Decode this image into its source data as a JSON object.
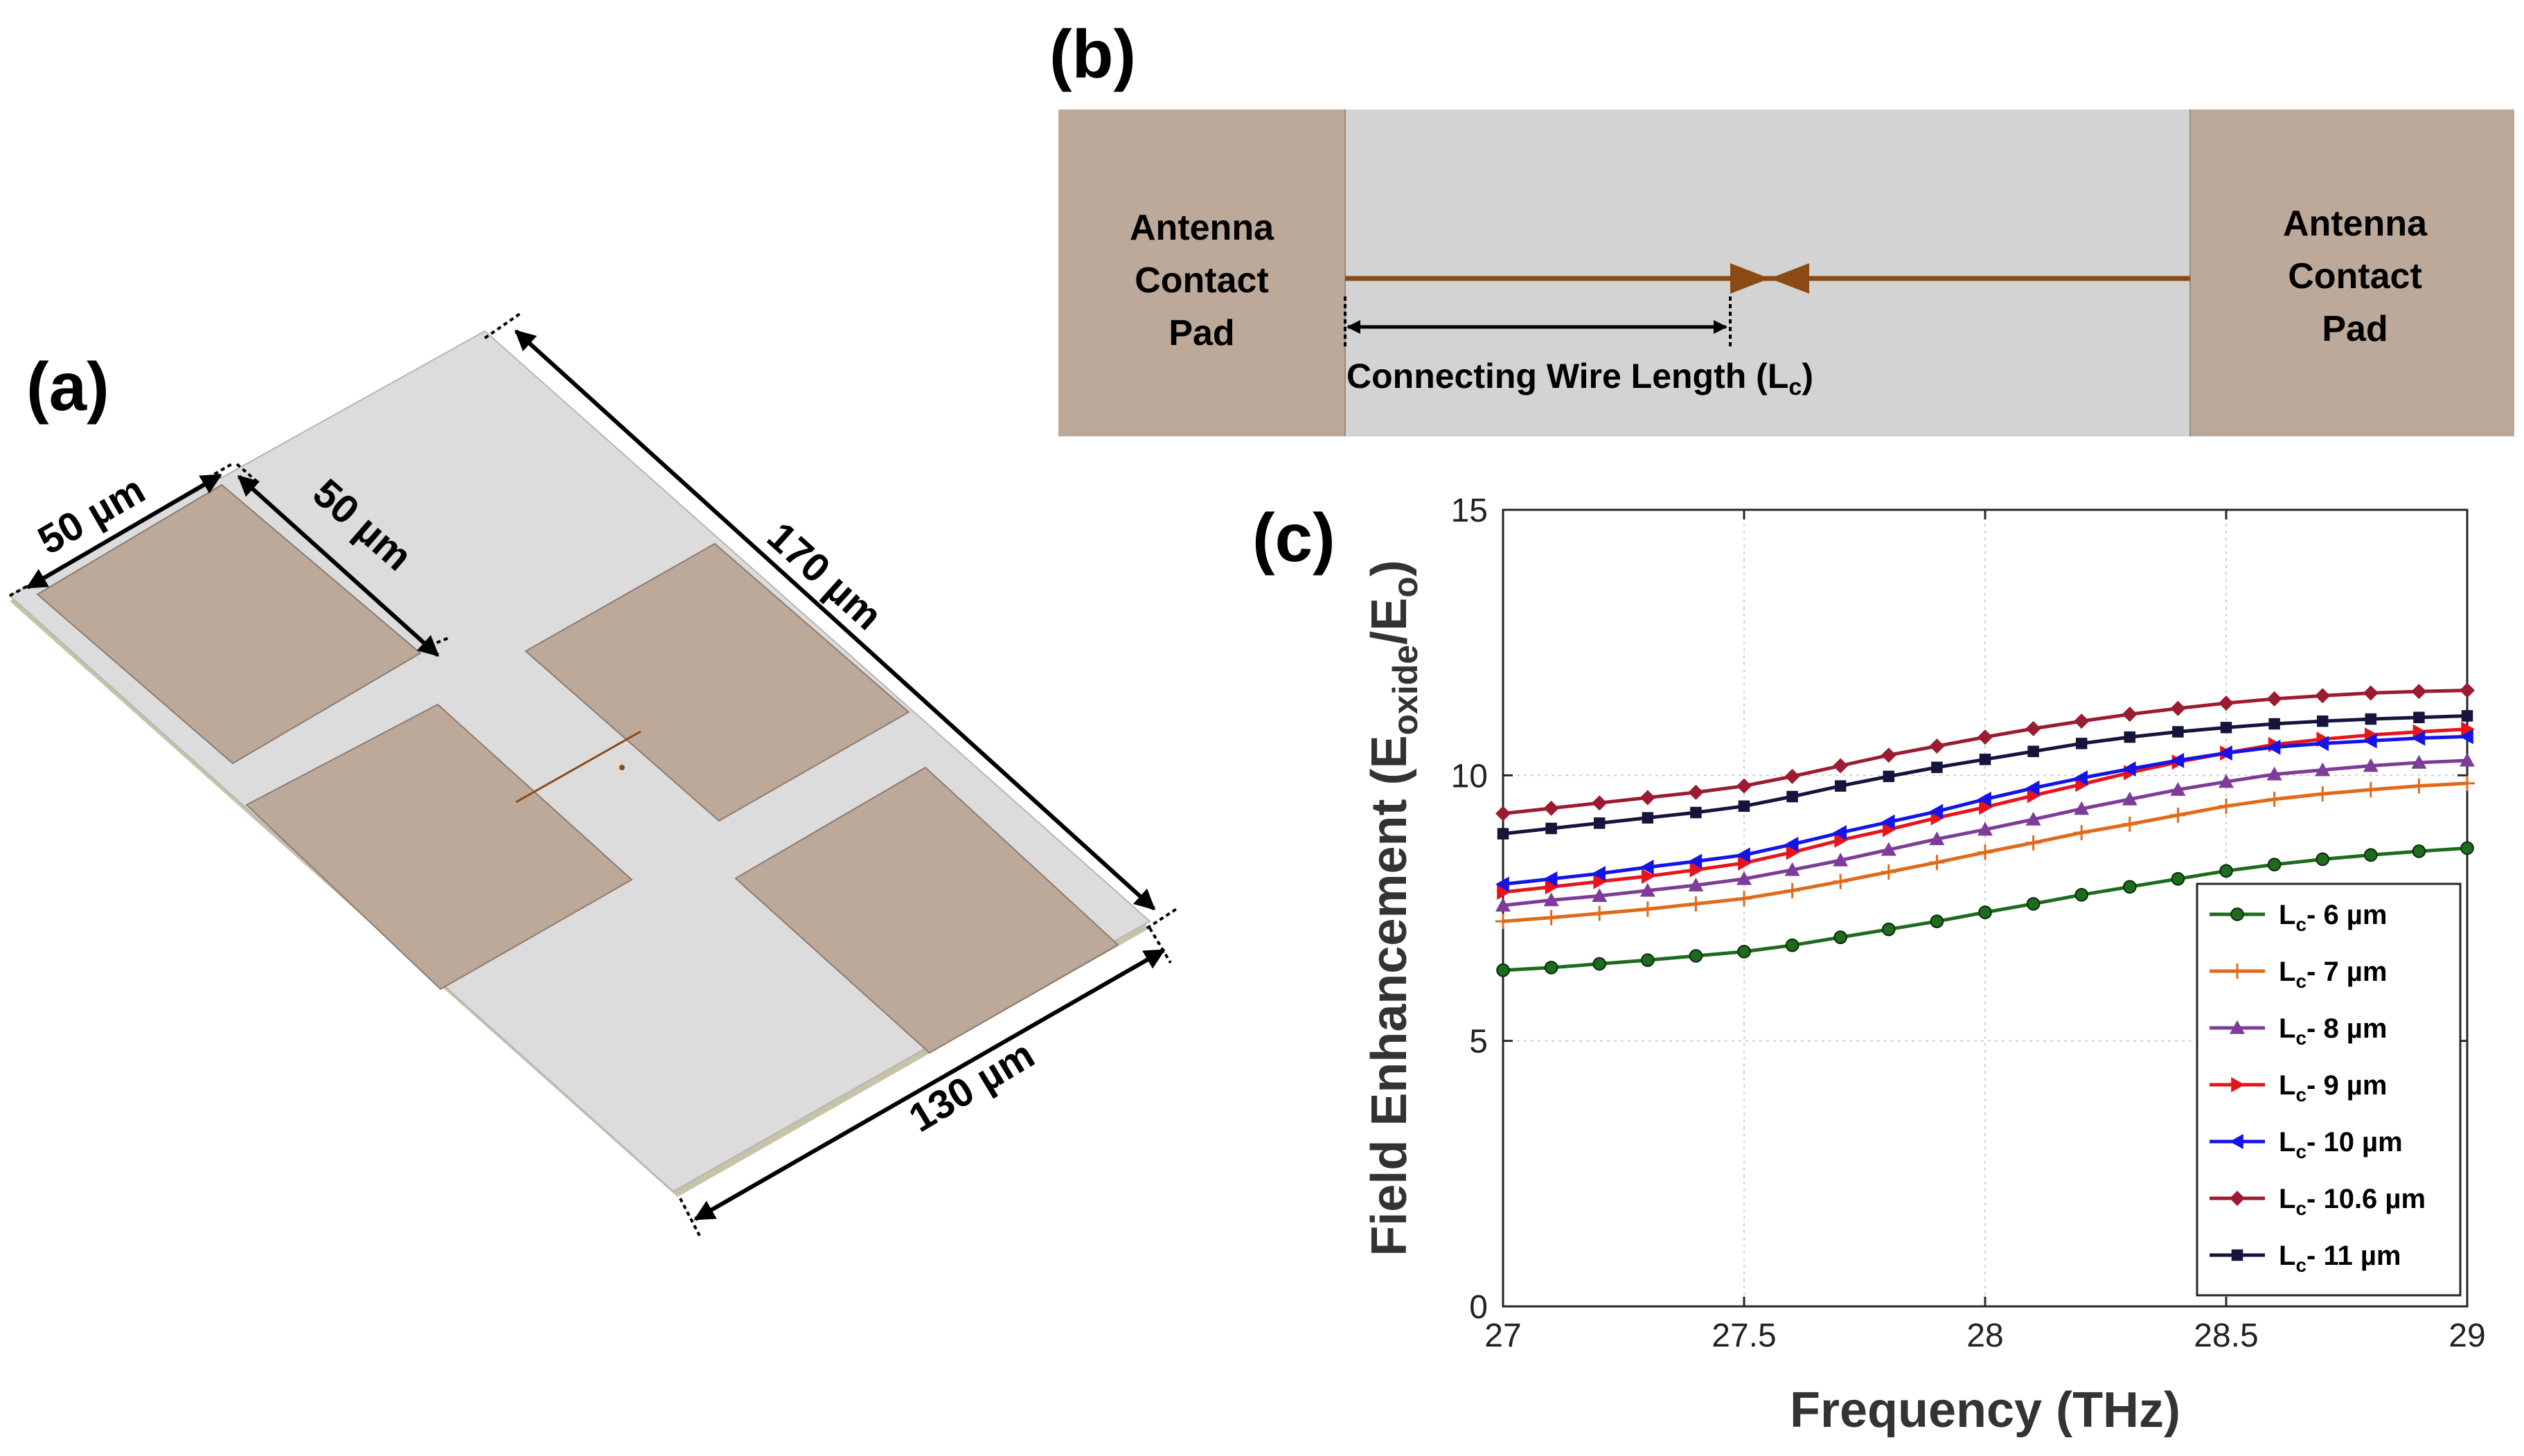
{
  "panels": {
    "a": {
      "label": "(a)",
      "dim_pad_width": "50 µm",
      "dim_pad_height": "50 µm",
      "dim_length": "170 µm",
      "dim_width": "130 µm"
    },
    "b": {
      "label": "(b)",
      "left_pad": [
        "Antenna",
        "Contact",
        "Pad"
      ],
      "right_pad": [
        "Antenna",
        "Contact",
        "Pad"
      ],
      "wire_label": "Connecting Wire Length (L",
      "wire_label_sub": "c",
      "wire_label_end": ")"
    },
    "c": {
      "label": "(c)"
    }
  },
  "colors": {
    "pad": "#bca99a",
    "substrate": "#d3d3d3",
    "wire": "#8b4a14"
  },
  "chart_data": {
    "type": "line",
    "xlabel": "Frequency (THz)",
    "ylabel_main": "Field Enhancement (E",
    "ylabel_sub1": "oxide",
    "ylabel_mid": "/E",
    "ylabel_sub2": "o",
    "ylabel_end": ")",
    "xlim": [
      27,
      29
    ],
    "ylim": [
      0,
      15
    ],
    "xticks": [
      27,
      27.5,
      28,
      28.5,
      29
    ],
    "xtick_labels": [
      "27",
      "27.5",
      "28",
      "28.5",
      "29"
    ],
    "yticks": [
      0,
      5,
      10,
      15
    ],
    "ytick_labels": [
      "0",
      "5",
      "10",
      "15"
    ],
    "grid": true,
    "legend_position": "lower-right",
    "x": [
      27.0,
      27.1,
      27.2,
      27.3,
      27.4,
      27.5,
      27.6,
      27.7,
      27.8,
      27.9,
      28.0,
      28.1,
      28.2,
      28.3,
      28.4,
      28.5,
      28.6,
      28.7,
      28.8,
      28.9,
      29.0
    ],
    "series": [
      {
        "name_pre": "L",
        "name_sub": "c",
        "name_post": "- 6 µm",
        "color": "#1e6b1e",
        "marker": "circle",
        "values": [
          6.33,
          6.38,
          6.45,
          6.52,
          6.6,
          6.68,
          6.8,
          6.95,
          7.1,
          7.25,
          7.42,
          7.58,
          7.75,
          7.9,
          8.05,
          8.2,
          8.32,
          8.42,
          8.5,
          8.57,
          8.63
        ]
      },
      {
        "name_pre": "L",
        "name_sub": "c",
        "name_post": "- 7 µm",
        "color": "#e06a1a",
        "marker": "plus",
        "values": [
          7.25,
          7.32,
          7.4,
          7.48,
          7.58,
          7.68,
          7.83,
          8.0,
          8.18,
          8.36,
          8.55,
          8.73,
          8.92,
          9.08,
          9.25,
          9.42,
          9.55,
          9.65,
          9.73,
          9.8,
          9.85
        ]
      },
      {
        "name_pre": "L",
        "name_sub": "c",
        "name_post": "- 8 µm",
        "color": "#7d3c98",
        "marker": "triangle-up",
        "values": [
          7.55,
          7.65,
          7.73,
          7.83,
          7.93,
          8.05,
          8.22,
          8.4,
          8.6,
          8.8,
          8.98,
          9.17,
          9.37,
          9.55,
          9.73,
          9.88,
          10.02,
          10.1,
          10.18,
          10.24,
          10.28
        ]
      },
      {
        "name_pre": "L",
        "name_sub": "c",
        "name_post": "- 9 µm",
        "color": "#e8141c",
        "marker": "triangle-right",
        "values": [
          7.8,
          7.9,
          8.0,
          8.1,
          8.22,
          8.35,
          8.55,
          8.78,
          8.98,
          9.2,
          9.4,
          9.62,
          9.83,
          10.05,
          10.25,
          10.42,
          10.58,
          10.68,
          10.76,
          10.82,
          10.87
        ]
      },
      {
        "name_pre": "L",
        "name_sub": "c",
        "name_post": "- 10 µm",
        "color": "#1414e6",
        "marker": "triangle-left",
        "values": [
          7.95,
          8.05,
          8.15,
          8.27,
          8.38,
          8.5,
          8.7,
          8.92,
          9.12,
          9.32,
          9.55,
          9.76,
          9.95,
          10.12,
          10.28,
          10.42,
          10.53,
          10.6,
          10.65,
          10.7,
          10.73
        ]
      },
      {
        "name_pre": "L",
        "name_sub": "c",
        "name_post": "- 10.6 µm",
        "color": "#9b1b30",
        "marker": "diamond",
        "values": [
          9.28,
          9.38,
          9.48,
          9.58,
          9.68,
          9.8,
          9.98,
          10.18,
          10.38,
          10.55,
          10.72,
          10.88,
          11.02,
          11.15,
          11.26,
          11.36,
          11.44,
          11.5,
          11.55,
          11.58,
          11.6
        ]
      },
      {
        "name_pre": "L",
        "name_sub": "c",
        "name_post": "- 11 µm",
        "color": "#14143c",
        "marker": "square",
        "values": [
          8.9,
          9.0,
          9.1,
          9.2,
          9.3,
          9.42,
          9.6,
          9.8,
          9.98,
          10.15,
          10.3,
          10.45,
          10.6,
          10.72,
          10.82,
          10.9,
          10.97,
          11.02,
          11.06,
          11.09,
          11.12
        ]
      }
    ]
  }
}
